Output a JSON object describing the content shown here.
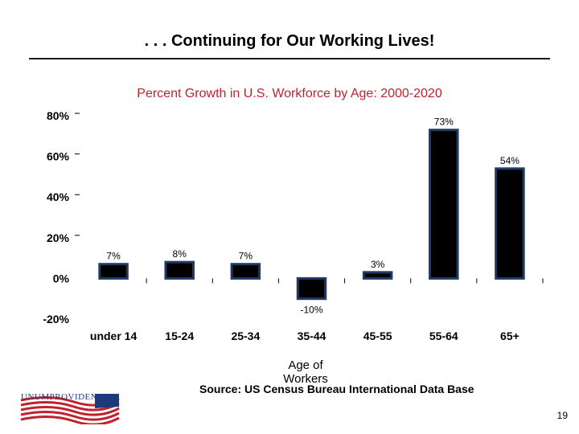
{
  "slide": {
    "title": ". . . Continuing for Our Working Lives!",
    "source": "Source: US Census Bureau International Data Base",
    "page_number": "19",
    "logo_text": "UNUMPROVIDENT"
  },
  "colors": {
    "bar_fill": "#000000",
    "bar_border": "#1f3a64",
    "chart_title": "#c0222c"
  },
  "chart_data": {
    "type": "bar",
    "title": "Percent Growth in U.S. Workforce by Age: 2000-2020",
    "xlabel": "Age of Workers",
    "ylabel": "",
    "categories": [
      "under 14",
      "15-24",
      "25-34",
      "35-44",
      "45-55",
      "55-64",
      "65+"
    ],
    "values": [
      7,
      8,
      7,
      -10,
      3,
      73,
      54
    ],
    "value_labels": [
      "7%",
      "8%",
      "7%",
      "-10%",
      "3%",
      "73%",
      "54%"
    ],
    "yticks": [
      80,
      60,
      40,
      20,
      0,
      -20
    ],
    "ytick_labels": [
      "80%",
      "60%",
      "40%",
      "20%",
      "0%",
      "-20%"
    ],
    "ylim": [
      -20,
      80
    ],
    "grid": false,
    "legend": "none"
  }
}
